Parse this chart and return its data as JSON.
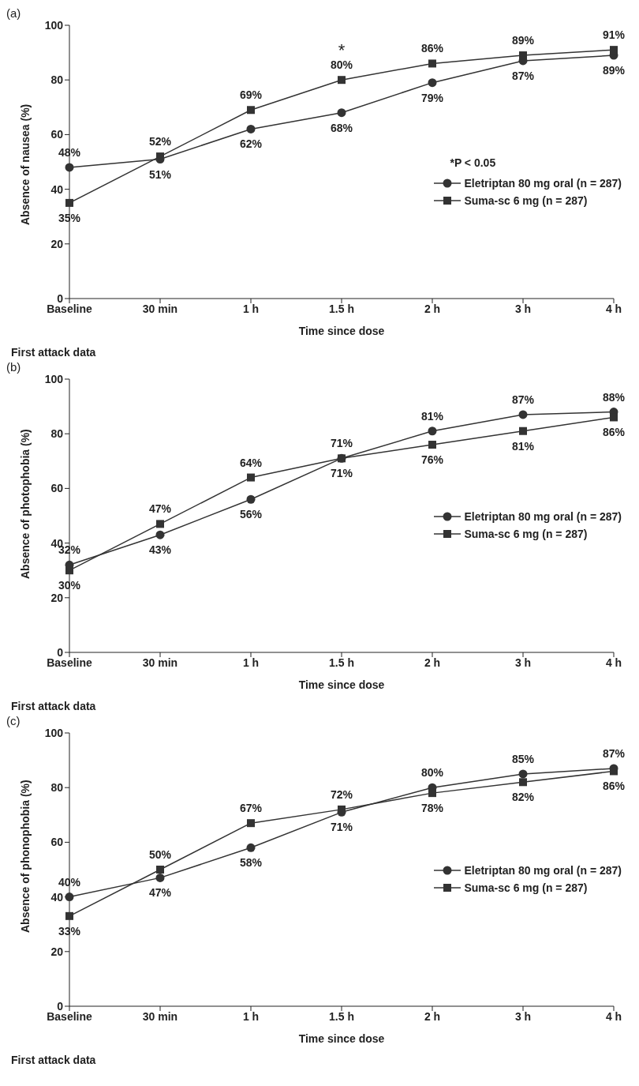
{
  "chart_data": [
    {
      "type": "line",
      "title": "(a)",
      "xlabel": "Time since dose",
      "ylabel": "Absence of nausea (%)",
      "categories": [
        "Baseline",
        "30 min",
        "1 h",
        "1.5 h",
        "2 h",
        "3 h",
        "4 h"
      ],
      "ylim": [
        0,
        100
      ],
      "yticks": [
        0,
        20,
        40,
        60,
        80,
        100
      ],
      "grid": false,
      "legend": "right",
      "series": [
        {
          "name": "Eletriptan 80 mg oral (n = 287)",
          "color": "#333333",
          "marker": "circle",
          "values": [
            48,
            51,
            62,
            68,
            79,
            87,
            89
          ],
          "value_labels": [
            "48%",
            "51%",
            "62%",
            "68%",
            "79%",
            "87%",
            "89%"
          ]
        },
        {
          "name": "Suma-sc 6 mg (n = 287)",
          "color": "#333333",
          "marker": "square",
          "values": [
            35,
            52,
            69,
            80,
            86,
            89,
            91
          ],
          "value_labels": [
            "35%",
            "52%",
            "69%",
            "80%",
            "86%",
            "89%",
            "91%"
          ]
        }
      ],
      "annotations": [
        "*P < 0.05",
        "First attack data",
        {
          "text": "*",
          "x": "1.5 h",
          "y": 80
        }
      ]
    },
    {
      "type": "line",
      "title": "(b)",
      "xlabel": "Time since dose",
      "ylabel": "Absence of photophobia (%)",
      "categories": [
        "Baseline",
        "30 min",
        "1 h",
        "1.5 h",
        "2 h",
        "3 h",
        "4 h"
      ],
      "ylim": [
        0,
        100
      ],
      "yticks": [
        0,
        20,
        40,
        60,
        80,
        100
      ],
      "grid": false,
      "legend": "right",
      "series": [
        {
          "name": "Eletriptan 80 mg oral (n = 287)",
          "color": "#333333",
          "marker": "circle",
          "values": [
            32,
            43,
            56,
            71,
            81,
            87,
            88
          ],
          "value_labels": [
            "32%",
            "43%",
            "56%",
            "71%",
            "81%",
            "87%",
            "88%"
          ]
        },
        {
          "name": "Suma-sc 6 mg (n = 287)",
          "color": "#333333",
          "marker": "square",
          "values": [
            30,
            47,
            64,
            71,
            76,
            81,
            86
          ],
          "value_labels": [
            "30%",
            "47%",
            "64%",
            "71%",
            "76%",
            "81%",
            "86%"
          ]
        }
      ],
      "annotations": [
        "First attack data"
      ]
    },
    {
      "type": "line",
      "title": "(c)",
      "xlabel": "Time since dose",
      "ylabel": "Absence of phonophobia (%)",
      "categories": [
        "Baseline",
        "30 min",
        "1 h",
        "1.5 h",
        "2 h",
        "3 h",
        "4 h"
      ],
      "ylim": [
        0,
        100
      ],
      "yticks": [
        0,
        20,
        40,
        60,
        80,
        100
      ],
      "grid": false,
      "legend": "right",
      "series": [
        {
          "name": "Eletriptan 80 mg oral (n = 287)",
          "color": "#333333",
          "marker": "circle",
          "values": [
            40,
            47,
            58,
            71,
            80,
            85,
            87
          ],
          "value_labels": [
            "40%",
            "47%",
            "58%",
            "71%",
            "80%",
            "85%",
            "87%"
          ]
        },
        {
          "name": "Suma-sc 6 mg (n = 287)",
          "color": "#333333",
          "marker": "square",
          "values": [
            33,
            50,
            67,
            72,
            78,
            82,
            86
          ],
          "value_labels": [
            "33%",
            "50%",
            "67%",
            "72%",
            "78%",
            "82%",
            "86%"
          ]
        }
      ],
      "annotations": [
        "First attack data"
      ]
    }
  ]
}
